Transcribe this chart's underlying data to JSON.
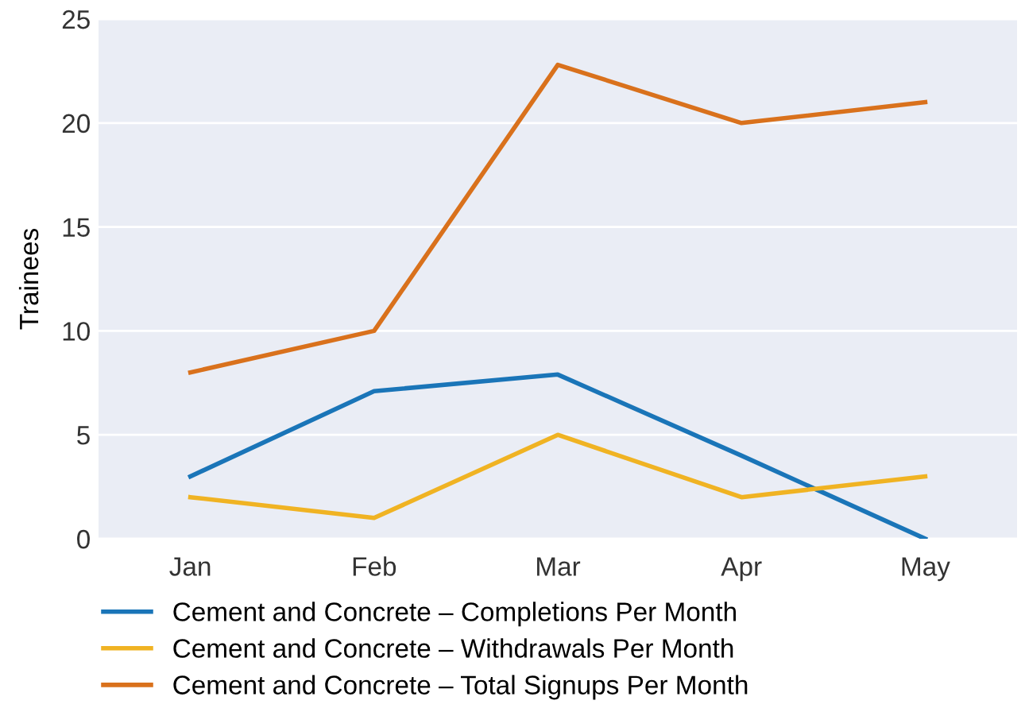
{
  "chart_data": {
    "type": "line",
    "ylabel": "Trainees",
    "categories": [
      "Jan",
      "Feb",
      "Mar",
      "Apr",
      "May"
    ],
    "series": [
      {
        "name": "Cement and Concrete – Completions Per Month",
        "color": "#1a75b8",
        "values": [
          3,
          7.1,
          7.9,
          4,
          0
        ]
      },
      {
        "name": "Cement and Concrete – Withdrawals Per Month",
        "color": "#f0b323",
        "values": [
          2,
          1,
          5,
          2,
          3
        ]
      },
      {
        "name": "Cement and Concrete – Total Signups Per Month",
        "color": "#d9711c",
        "values": [
          8,
          10,
          22.8,
          20,
          21
        ]
      }
    ],
    "ylim": [
      0,
      25
    ],
    "yticks": [
      0,
      5,
      10,
      15,
      20,
      25
    ],
    "grid": "y",
    "legend": "bottom",
    "marker": "none",
    "line_style": "solid"
  }
}
